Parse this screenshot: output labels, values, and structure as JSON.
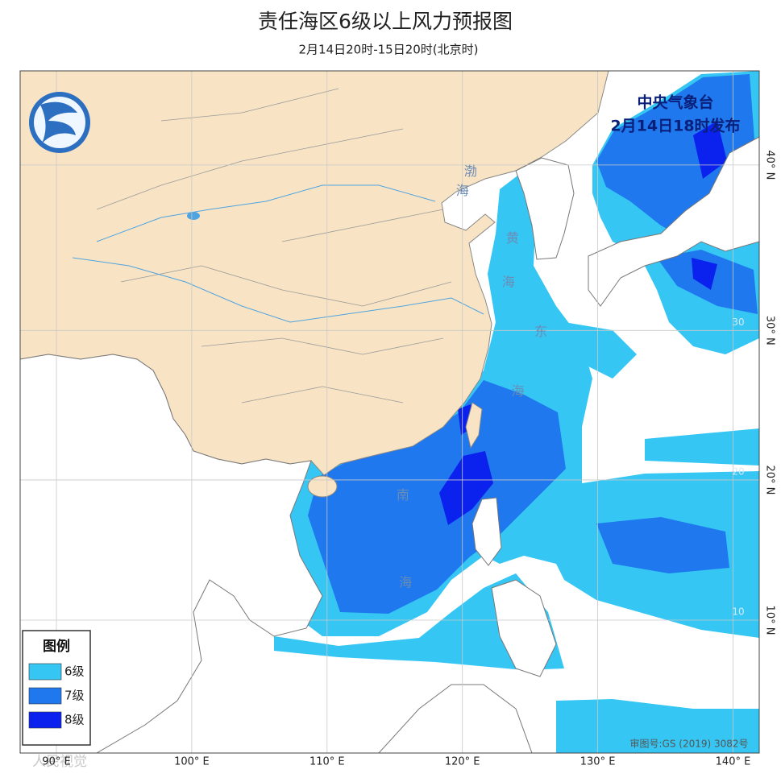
{
  "header": {
    "title": "责任海区6级以上风力预报图",
    "subtitle": "2月14日20时-15日20时(北京时)"
  },
  "issuer": {
    "agency": "中央气象台",
    "issued": "2月14日18时发布"
  },
  "legend": {
    "title": "图例",
    "items": [
      {
        "label": "6级",
        "color": "#35c6f4"
      },
      {
        "label": "7级",
        "color": "#1f78ee"
      },
      {
        "label": "8级",
        "color": "#0b22ee"
      }
    ]
  },
  "map": {
    "lon_ticks": [
      {
        "value": 90,
        "label": "90° E"
      },
      {
        "value": 100,
        "label": "100° E"
      },
      {
        "value": 110,
        "label": "110° E"
      },
      {
        "value": 120,
        "label": "120° E"
      },
      {
        "value": 130,
        "label": "130° E"
      },
      {
        "value": 140,
        "label": "140° E"
      }
    ],
    "lat_ticks": [
      {
        "value": 10,
        "label": "10° N"
      },
      {
        "value": 20,
        "label": "20° N"
      },
      {
        "value": 30,
        "label": "30° N"
      },
      {
        "value": 40,
        "label": "40° N"
      }
    ],
    "inner_lat_labels": [
      30,
      20,
      10
    ],
    "sea_labels": [
      {
        "text": "渤",
        "lon": 120.6,
        "lat": 39.6
      },
      {
        "text": "海",
        "lon": 120.0,
        "lat": 38.5
      },
      {
        "text": "黄",
        "lon": 123.7,
        "lat": 35.7
      },
      {
        "text": "海",
        "lon": 123.4,
        "lat": 33.0
      },
      {
        "text": "东",
        "lon": 125.8,
        "lat": 29.9
      },
      {
        "text": "海",
        "lon": 124.1,
        "lat": 26.0
      },
      {
        "text": "南",
        "lon": 115.6,
        "lat": 18.9
      },
      {
        "text": "海",
        "lon": 115.8,
        "lat": 12.7
      }
    ]
  },
  "approval": "审图号:GS (2019) 3082号",
  "watermark": "人民视觉"
}
